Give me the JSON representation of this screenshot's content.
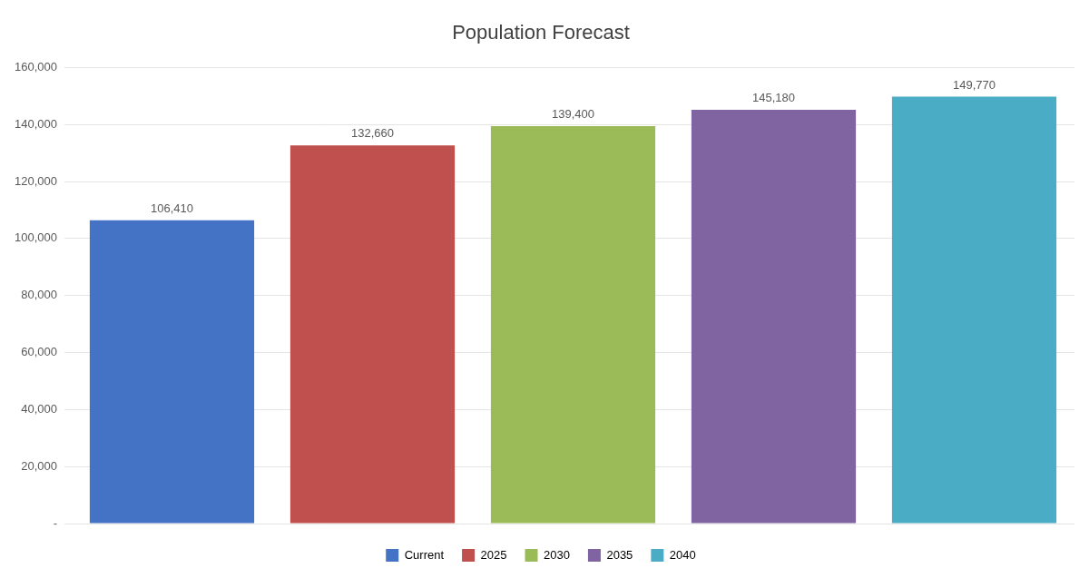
{
  "chart_data": {
    "type": "bar",
    "title": "Population Forecast",
    "categories": [
      "Current",
      "2025",
      "2030",
      "2035",
      "2040"
    ],
    "values": [
      106410,
      132660,
      139400,
      145180,
      149770
    ],
    "value_labels": [
      "106,410",
      "132,660",
      "139,400",
      "145,180",
      "149,770"
    ],
    "colors": [
      "#4472C4",
      "#C0504D",
      "#9BBB59",
      "#8064A2",
      "#4BACC6"
    ],
    "ylim": [
      0,
      160000
    ],
    "yticks": [
      {
        "value": 0,
        "label": "-"
      },
      {
        "value": 20000,
        "label": "20,000"
      },
      {
        "value": 40000,
        "label": "40,000"
      },
      {
        "value": 60000,
        "label": "60,000"
      },
      {
        "value": 80000,
        "label": "80,000"
      },
      {
        "value": 100000,
        "label": "100,000"
      },
      {
        "value": 120000,
        "label": "120,000"
      },
      {
        "value": 140000,
        "label": "140,000"
      },
      {
        "value": 160000,
        "label": "160,000"
      }
    ],
    "grid": true,
    "legend": "bottom",
    "data_labels": true,
    "tick_labels": "y"
  }
}
